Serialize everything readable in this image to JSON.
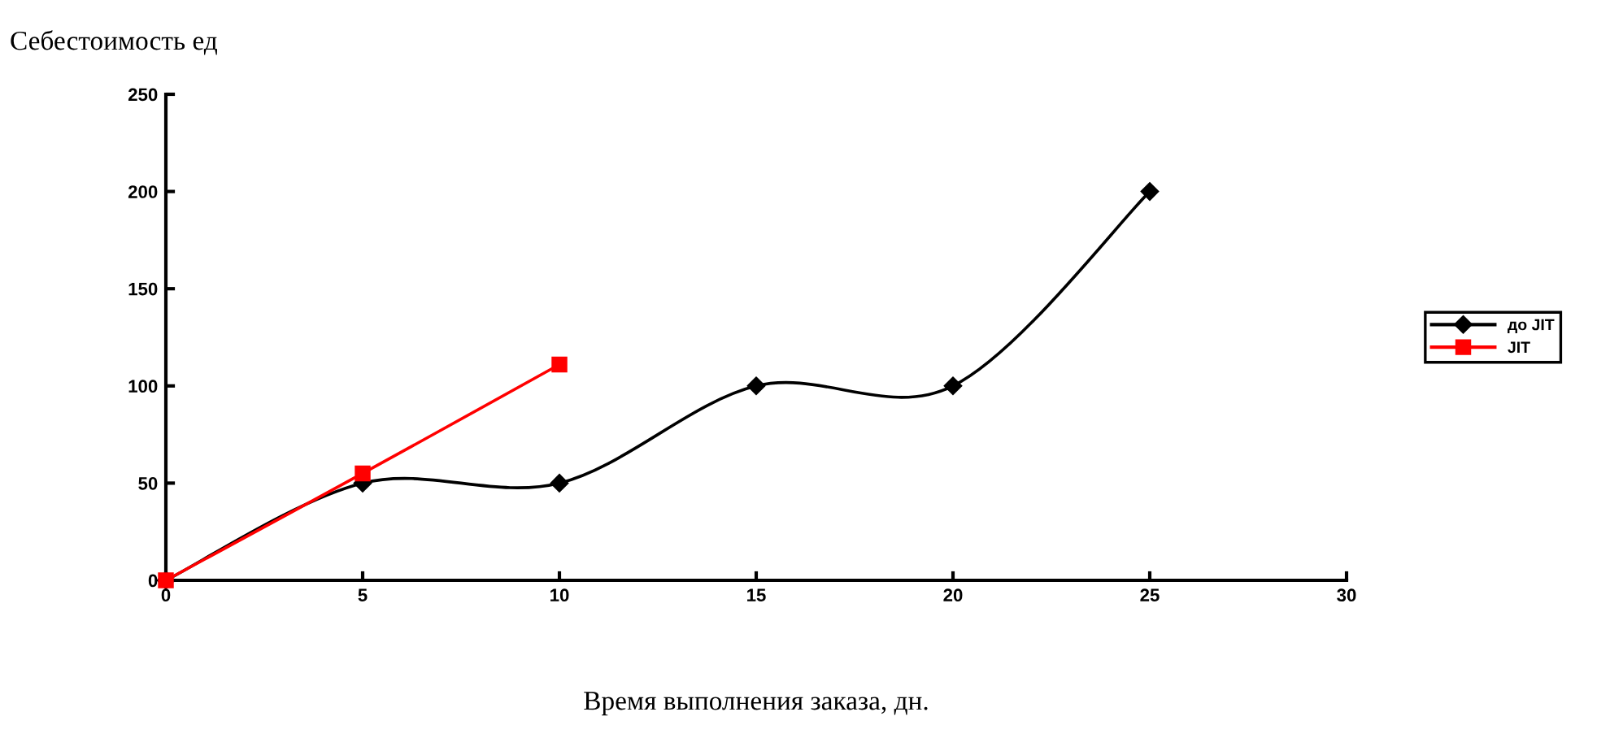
{
  "chart_data": {
    "type": "line",
    "xlabel": "Время выполнения заказа, дн.",
    "ylabel": "Себестоимость ед",
    "xlim": [
      0,
      30
    ],
    "xticks": [
      0,
      5,
      10,
      15,
      20,
      25,
      30
    ],
    "ylim": [
      0,
      250
    ],
    "yticks": [
      0,
      50,
      100,
      150,
      200,
      250
    ],
    "grid": false,
    "legend": "right",
    "series": [
      {
        "name": "до JIT",
        "color": "#000000",
        "marker": "diamond",
        "x": [
          0,
          5,
          10,
          15,
          20,
          25
        ],
        "values": [
          0,
          50,
          50,
          100,
          100,
          200
        ]
      },
      {
        "name": "JIT",
        "color": "#ff0000",
        "marker": "square",
        "x": [
          0,
          5,
          10
        ],
        "values": [
          0,
          55,
          111
        ]
      }
    ]
  }
}
